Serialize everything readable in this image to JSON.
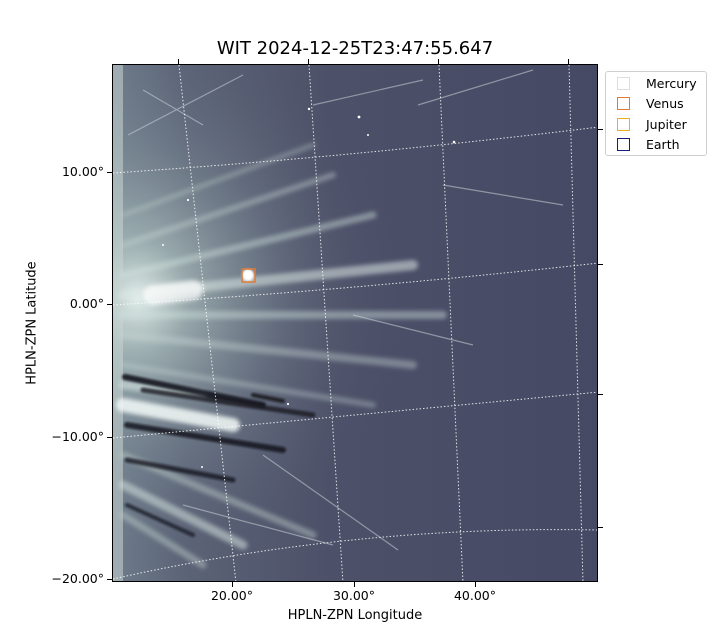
{
  "title": "WIT 2024-12-25T23:47:55.647",
  "axes": {
    "xlabel": "HPLN-ZPN Longitude",
    "ylabel": "HPLN-ZPN Latitude",
    "x_ticks": [
      "20.00°",
      "30.00°",
      "40.00°"
    ],
    "y_ticks": [
      "10.00°",
      "0.00°",
      "−10.00°",
      "−20.00°"
    ]
  },
  "legend": [
    {
      "label": "Mercury",
      "color": "#dddddd"
    },
    {
      "label": "Venus",
      "color": "#e07b39"
    },
    {
      "label": "Jupiter",
      "color": "#e8b020"
    },
    {
      "label": "Earth",
      "color": "#1a1a7a"
    }
  ],
  "image": {
    "background_color": "#4b4e6a",
    "grid_color": "#ffffff",
    "marker_color": "#e07b39"
  }
}
